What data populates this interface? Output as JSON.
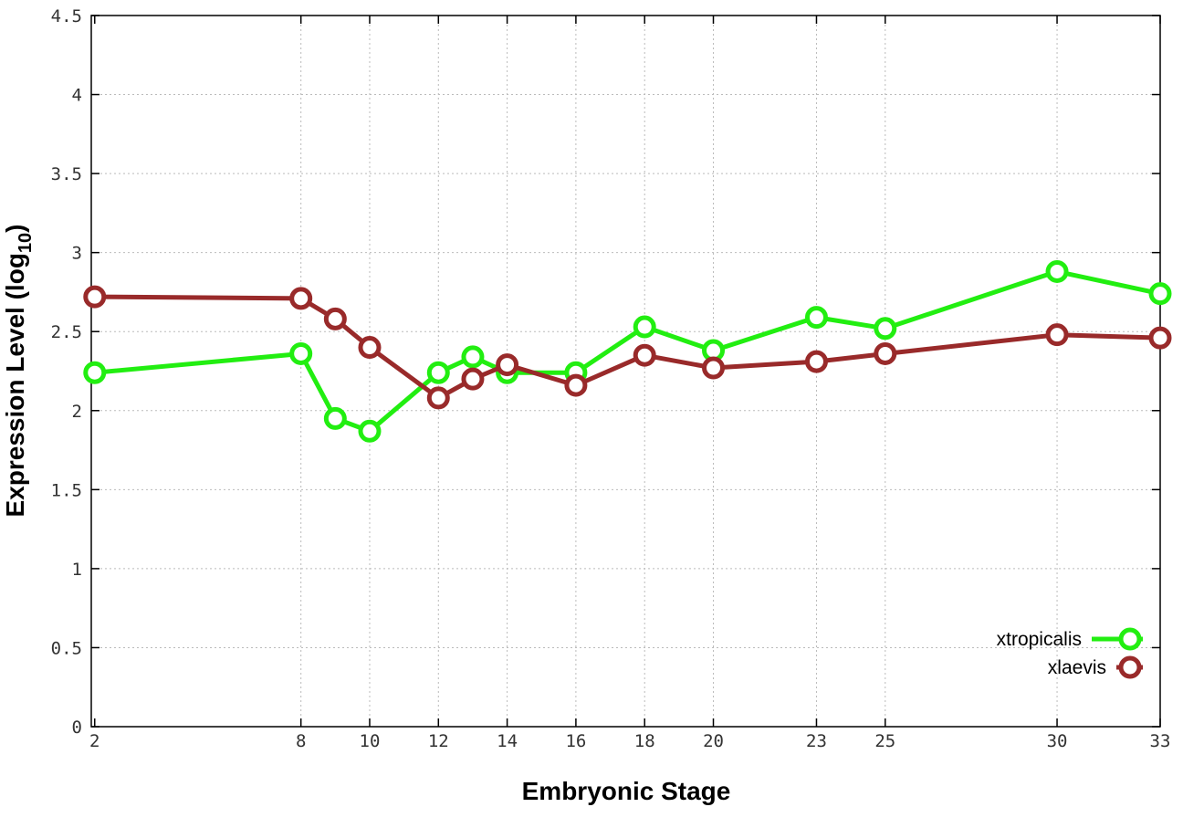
{
  "chart_data": {
    "type": "line",
    "title": "",
    "xlabel": "Embryonic Stage",
    "ylabel_main": "Expression Level (log",
    "ylabel_sub": "10",
    "ylabel_close": ")",
    "x_ticks": [
      "2",
      "8",
      "10",
      "12",
      "14",
      "16",
      "18",
      "20",
      "23",
      "25",
      "30",
      "33"
    ],
    "y_ticks": [
      "0",
      "0.5",
      "1",
      "1.5",
      "2",
      "2.5",
      "3",
      "3.5",
      "4",
      "4.5"
    ],
    "xlim": [
      1.9,
      33
    ],
    "ylim": [
      0,
      4.5
    ],
    "grid": true,
    "legend_position": "bottom-right",
    "series": [
      {
        "name": "xtropicalis",
        "color": "#22ee11",
        "x": [
          2,
          8,
          9,
          10,
          12,
          13,
          14,
          16,
          18,
          20,
          23,
          25,
          30,
          33
        ],
        "y": [
          2.24,
          2.36,
          1.95,
          1.87,
          2.24,
          2.34,
          2.24,
          2.24,
          2.53,
          2.38,
          2.59,
          2.52,
          2.88,
          2.74
        ]
      },
      {
        "name": "xlaevis",
        "color": "#992a2a",
        "x": [
          2,
          8,
          9,
          10,
          12,
          13,
          14,
          16,
          18,
          20,
          23,
          25,
          30,
          33
        ],
        "y": [
          2.72,
          2.71,
          2.58,
          2.4,
          2.08,
          2.2,
          2.29,
          2.16,
          2.35,
          2.27,
          2.31,
          2.36,
          2.48,
          2.46
        ]
      }
    ]
  }
}
